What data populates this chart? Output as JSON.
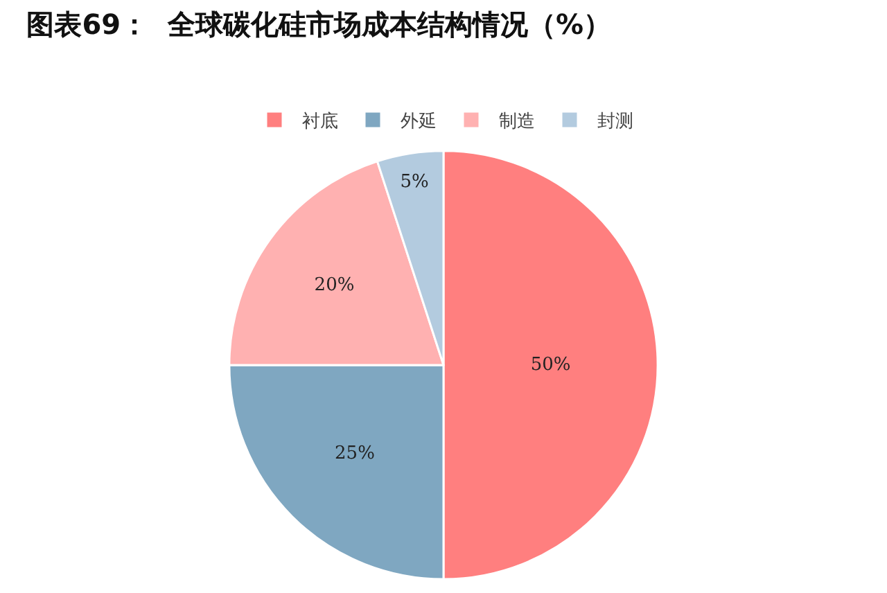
{
  "chart_data": {
    "type": "pie",
    "title": "图表69：  全球碳化硅市场成本结构情况（%）",
    "categories": [
      "衬底",
      "外延",
      "制造",
      "封测"
    ],
    "values": [
      50,
      25,
      20,
      5
    ],
    "colors": [
      "#ff7f7f",
      "#7fa7c1",
      "#ffb1b1",
      "#b3cbdf"
    ],
    "value_labels": [
      "50%",
      "25%",
      "20%",
      "5%"
    ],
    "legend": "top"
  }
}
